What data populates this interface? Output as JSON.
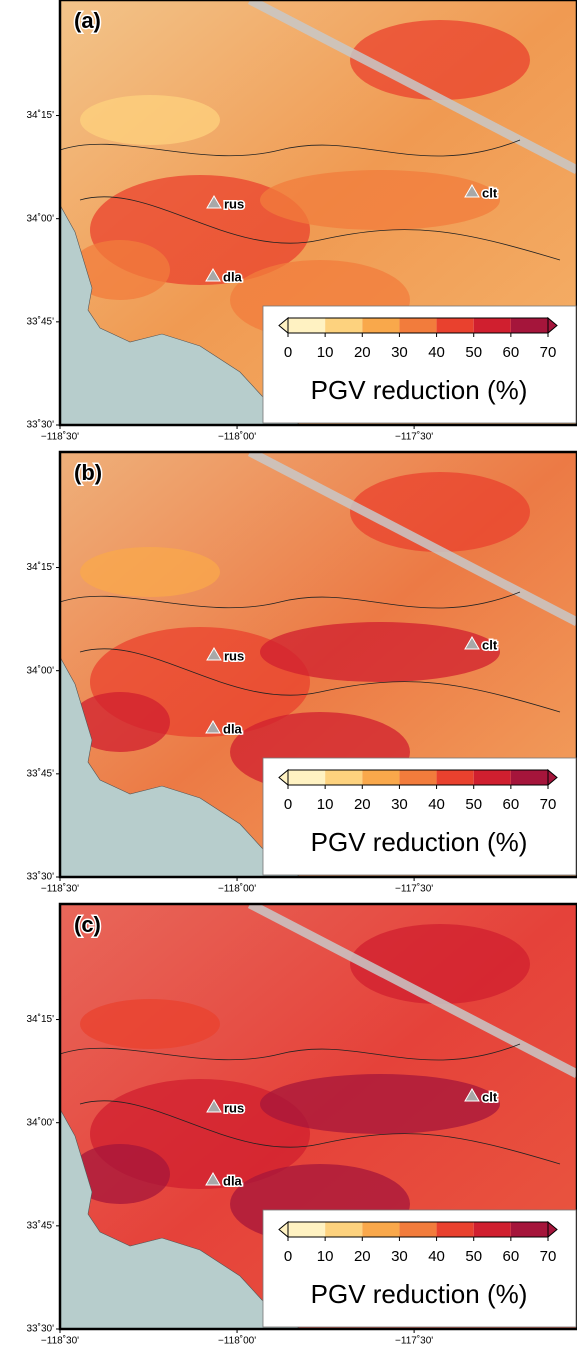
{
  "map": {
    "panels": [
      {
        "label": "(a)"
      },
      {
        "label": "(b)"
      },
      {
        "label": "(c)"
      }
    ],
    "xlim": [
      -118.5,
      -117.04
    ],
    "ylim": [
      33.5,
      34.53
    ],
    "xticks": [
      {
        "value": -118.5,
        "label": "−118˚30'"
      },
      {
        "value": -118.0,
        "label": "−118˚00'"
      },
      {
        "value": -117.5,
        "label": "−117˚30'"
      }
    ],
    "yticks": [
      {
        "value": 34.25,
        "label": "34˚15'"
      },
      {
        "value": 34.0,
        "label": "34˚00'"
      },
      {
        "value": 33.75,
        "label": "33˚45'"
      },
      {
        "value": 33.5,
        "label": "33˚30'"
      }
    ],
    "stations": [
      "rus",
      "dla",
      "clt"
    ],
    "colorbar": {
      "ticks": [
        0,
        10,
        20,
        30,
        40,
        50,
        60,
        70
      ],
      "colors": [
        "#fff2c2",
        "#fdd27e",
        "#f9a84b",
        "#f27c3c",
        "#e9412e",
        "#d01f2f",
        "#a5153b"
      ],
      "label": "PGV reduction (%)"
    }
  }
}
